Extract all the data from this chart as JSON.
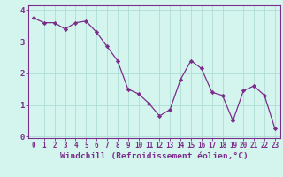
{
  "x": [
    0,
    1,
    2,
    3,
    4,
    5,
    6,
    7,
    8,
    9,
    10,
    11,
    12,
    13,
    14,
    15,
    16,
    17,
    18,
    19,
    20,
    21,
    22,
    23
  ],
  "y": [
    3.75,
    3.6,
    3.6,
    3.4,
    3.6,
    3.65,
    3.3,
    2.85,
    2.4,
    1.5,
    1.35,
    1.05,
    0.65,
    0.85,
    1.8,
    2.4,
    2.15,
    1.4,
    1.3,
    0.5,
    1.45,
    1.6,
    1.3,
    0.25
  ],
  "line_color": "#7b2d8b",
  "marker": "D",
  "marker_size": 2.2,
  "bg_color": "#d4f5ee",
  "grid_color": "#b0ddd6",
  "axis_color": "#7b2d8b",
  "xlabel": "Windchill (Refroidissement éolien,°C)",
  "xlabel_fontsize": 6.8,
  "xlim": [
    -0.5,
    23.5
  ],
  "ylim": [
    -0.05,
    4.15
  ],
  "yticks": [
    0,
    1,
    2,
    3,
    4
  ],
  "xtick_labels": [
    "0",
    "1",
    "2",
    "3",
    "4",
    "5",
    "6",
    "7",
    "8",
    "9",
    "10",
    "11",
    "12",
    "13",
    "14",
    "15",
    "16",
    "17",
    "18",
    "19",
    "20",
    "21",
    "22",
    "23"
  ],
  "tick_fontsize": 5.5,
  "ytick_fontsize": 6.5,
  "linewidth": 0.9
}
